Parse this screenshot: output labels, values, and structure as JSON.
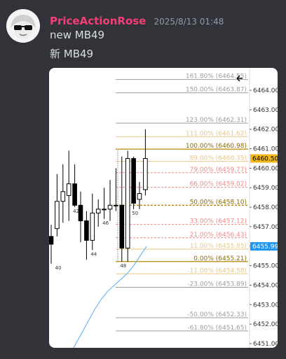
{
  "message": {
    "username": "PriceActionRose",
    "timestamp": "2025/8/13 01:48",
    "lines": [
      "new MB49",
      "新 MB49"
    ]
  },
  "colors": {
    "username": "#f23f78",
    "background": "#313338",
    "text": "#dbdee1",
    "muted": "#949ba4"
  },
  "chart_data": {
    "type": "candlestick",
    "y_axis": {
      "ticks": [
        "6464.00",
        "6463.00",
        "6462.00",
        "6461.00",
        "6460.00",
        "6459.00",
        "6458.00",
        "6457.00",
        "6456.00",
        "6455.00",
        "6454.00",
        "6453.00",
        "6452.00",
        "6451.00"
      ],
      "range": [
        6451.0,
        6465.2
      ]
    },
    "price_labels": [
      {
        "text": "6460.50",
        "value": 6460.5,
        "bg": "#f2b817",
        "fg": "#000000"
      },
      {
        "text": "6455.99",
        "value": 6455.99,
        "bg": "#2196f3",
        "fg": "#ffffff"
      }
    ],
    "fib_levels": [
      {
        "text": "161.80% (6464.55)",
        "value": 6464.55,
        "color": "#9e9e9e",
        "dash": false
      },
      {
        "text": "150.00% (6463.87)",
        "value": 6463.87,
        "color": "#9e9e9e",
        "dash": false
      },
      {
        "text": "123.00% (6462.31)",
        "value": 6462.31,
        "color": "#9e9e9e",
        "dash": false
      },
      {
        "text": "111.00% (6461.62)",
        "value": 6461.62,
        "color": "#e8c88a",
        "dash": false
      },
      {
        "text": "100.00% (6460.98)",
        "value": 6460.98,
        "color": "#b8860b",
        "dash": false
      },
      {
        "text": "89.00% (6460.35)",
        "value": 6460.35,
        "color": "#e8c88a",
        "dash": false
      },
      {
        "text": "79.00% (6459.77)",
        "value": 6459.77,
        "color": "#ef8a8a",
        "dash": true
      },
      {
        "text": "66.00% (6459.02)",
        "value": 6459.02,
        "color": "#ef8a8a",
        "dash": true
      },
      {
        "text": "50.00% (6458.10)",
        "value": 6458.1,
        "color": "#b8860b",
        "dash": true
      },
      {
        "text": "33.00% (6457.12)",
        "value": 6457.12,
        "color": "#ef8a8a",
        "dash": true
      },
      {
        "text": "21.00% (6456.43)",
        "value": 6456.43,
        "color": "#ef8a8a",
        "dash": true
      },
      {
        "text": "11.00% (6455.85)",
        "value": 6455.85,
        "color": "#e8c88a",
        "dash": false
      },
      {
        "text": "0.00% (6455.21)",
        "value": 6455.21,
        "color": "#b8860b",
        "dash": false
      },
      {
        "text": "-11.00% (6454.58)",
        "value": 6454.58,
        "color": "#e8c88a",
        "dash": false
      },
      {
        "text": "-23.00% (6453.89)",
        "value": 6453.89,
        "color": "#9e9e9e",
        "dash": false
      },
      {
        "text": "-50.00% (6452.33)",
        "value": 6452.33,
        "color": "#9e9e9e",
        "dash": false
      },
      {
        "text": "-61.80% (6451.65)",
        "value": 6451.65,
        "color": "#9e9e9e",
        "dash": false
      }
    ],
    "candles": [
      {
        "o": 6456.5,
        "h": 6457.1,
        "l": 6455.1,
        "c": 6456.1,
        "label": "40"
      },
      {
        "o": 6456.9,
        "h": 6459.7,
        "l": 6456.5,
        "c": 6458.3,
        "label": ""
      },
      {
        "o": 6458.3,
        "h": 6460.2,
        "l": 6457.2,
        "c": 6458.8,
        "label": ""
      },
      {
        "o": 6458.6,
        "h": 6460.9,
        "l": 6457.3,
        "c": 6459.2,
        "label": ""
      },
      {
        "o": 6459.2,
        "h": 6460.2,
        "l": 6458.0,
        "c": 6458.1,
        "label": "42"
      },
      {
        "o": 6458.1,
        "h": 6458.8,
        "l": 6456.2,
        "c": 6457.3,
        "label": ""
      },
      {
        "o": 6457.3,
        "h": 6457.8,
        "l": 6455.3,
        "c": 6456.3,
        "label": ""
      },
      {
        "o": 6456.3,
        "h": 6458.7,
        "l": 6455.8,
        "c": 6457.7,
        "label": "44"
      },
      {
        "o": 6457.7,
        "h": 6458.4,
        "l": 6457.0,
        "c": 6457.9,
        "label": ""
      },
      {
        "o": 6457.9,
        "h": 6459.0,
        "l": 6457.4,
        "c": 6457.9,
        "label": "46"
      },
      {
        "o": 6457.9,
        "h": 6459.4,
        "l": 6457.3,
        "c": 6458.1,
        "label": ""
      },
      {
        "o": 6458.1,
        "h": 6460.0,
        "l": 6457.8,
        "c": 6458.1,
        "label": ""
      },
      {
        "o": 6458.1,
        "h": 6460.6,
        "l": 6455.2,
        "c": 6455.9,
        "label": "48"
      },
      {
        "o": 6455.9,
        "h": 6460.9,
        "l": 6455.2,
        "c": 6460.5,
        "label": ""
      },
      {
        "o": 6460.5,
        "h": 6460.6,
        "l": 6457.9,
        "c": 6458.2,
        "label": "50"
      },
      {
        "o": 6458.4,
        "h": 6459.3,
        "l": 6457.9,
        "c": 6458.7,
        "label": ""
      },
      {
        "o": 6458.9,
        "h": 6462.0,
        "l": 6458.6,
        "c": 6460.5,
        "label": ""
      }
    ],
    "ma_line": [
      6449.8,
      6450.4,
      6451.0,
      6451.6,
      6452.2,
      6452.8,
      6453.3,
      6453.7,
      6454.0,
      6454.3,
      6454.6,
      6455.0,
      6455.5,
      6455.99
    ]
  }
}
